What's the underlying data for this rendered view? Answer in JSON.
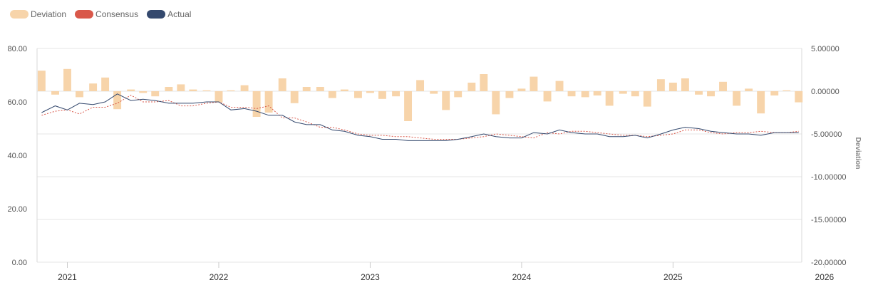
{
  "legend": [
    {
      "name": "Deviation",
      "color": "#F7D4AA"
    },
    {
      "name": "Consensus",
      "color": "#D9584A"
    },
    {
      "name": "Actual",
      "color": "#34496E"
    }
  ],
  "chart_data": {
    "type": "bar+line",
    "left_axis": {
      "min": 0,
      "max": 80,
      "ticks": [
        "0.00",
        "20.00",
        "40.00",
        "60.00",
        "80.00"
      ]
    },
    "right_axis": {
      "title": "Deviation",
      "min": -20,
      "max": 5,
      "ticks": [
        "-20.00000",
        "-15.00000",
        "-10.00000",
        "-5.00000",
        "0.00000",
        "5.00000"
      ]
    },
    "x_axis": {
      "ticks": [
        "2021",
        "2022",
        "2023",
        "2024",
        "2025",
        "2026"
      ],
      "start": 2020.8,
      "end": 2025.85
    },
    "grid": true,
    "legend_position": "top-left",
    "x": [
      2020.83,
      2020.92,
      2021.0,
      2021.08,
      2021.17,
      2021.25,
      2021.33,
      2021.42,
      2021.5,
      2021.58,
      2021.67,
      2021.75,
      2021.83,
      2021.92,
      2022.0,
      2022.08,
      2022.17,
      2022.25,
      2022.33,
      2022.42,
      2022.5,
      2022.58,
      2022.67,
      2022.75,
      2022.83,
      2022.92,
      2023.0,
      2023.08,
      2023.17,
      2023.25,
      2023.33,
      2023.42,
      2023.5,
      2023.58,
      2023.67,
      2023.75,
      2023.83,
      2023.92,
      2024.0,
      2024.08,
      2024.17,
      2024.25,
      2024.33,
      2024.42,
      2024.5,
      2024.58,
      2024.67,
      2024.75,
      2024.83,
      2024.92,
      2025.0,
      2025.08,
      2025.17,
      2025.25,
      2025.33,
      2025.42,
      2025.5,
      2025.58,
      2025.67,
      2025.75,
      2025.83
    ],
    "series": [
      {
        "name": "Deviation",
        "type": "bar",
        "axis": "right",
        "values": [
          2.4,
          -0.4,
          2.6,
          -0.7,
          0.9,
          1.6,
          -2.1,
          0.2,
          -0.2,
          -0.6,
          0.5,
          0.8,
          0.2,
          0.1,
          -1.3,
          0.1,
          0.7,
          -3.0,
          -2.5,
          1.5,
          -1.4,
          0.5,
          0.5,
          -0.8,
          0.2,
          -0.8,
          -0.2,
          -0.9,
          -0.6,
          -3.5,
          1.3,
          -0.3,
          -2.2,
          -0.7,
          1.0,
          2.0,
          -2.7,
          -0.8,
          0.3,
          1.7,
          -1.2,
          1.2,
          -0.6,
          -0.7,
          -0.5,
          -1.7,
          -0.3,
          -0.6,
          -1.8,
          1.4,
          1.0,
          1.5,
          -0.4,
          -0.6,
          1.1,
          -1.7,
          0.3,
          -2.6,
          -0.5,
          0.1,
          -1.3
        ]
      },
      {
        "name": "Consensus",
        "type": "line",
        "axis": "left",
        "values": [
          55.0,
          56.5,
          57.0,
          55.5,
          58.0,
          58.0,
          59.5,
          62.5,
          60.0,
          60.0,
          60.5,
          58.5,
          58.5,
          59.5,
          60.0,
          58.0,
          58.0,
          57.5,
          58.5,
          54.0,
          54.0,
          52.5,
          50.5,
          50.5,
          49.5,
          48.0,
          47.5,
          47.5,
          47.0,
          47.0,
          46.5,
          46.0,
          46.0,
          46.0,
          46.5,
          47.0,
          48.0,
          47.5,
          47.0,
          46.5,
          48.5,
          48.0,
          49.0,
          49.0,
          48.5,
          48.0,
          47.5,
          47.5,
          47.0,
          47.5,
          48.0,
          49.5,
          49.5,
          48.5,
          48.0,
          48.5,
          48.5,
          49.0,
          48.5,
          48.5,
          49.0
        ]
      },
      {
        "name": "Actual",
        "type": "line",
        "axis": "left",
        "values": [
          56.0,
          58.5,
          57.0,
          59.5,
          59.0,
          60.0,
          63.0,
          60.5,
          61.0,
          60.5,
          59.5,
          59.5,
          59.5,
          60.0,
          60.0,
          57.0,
          57.5,
          56.5,
          55.0,
          55.0,
          52.5,
          51.5,
          51.5,
          49.5,
          49.0,
          47.5,
          47.0,
          46.0,
          46.0,
          45.5,
          45.5,
          45.5,
          45.5,
          46.0,
          47.0,
          48.0,
          47.0,
          46.5,
          46.5,
          48.5,
          48.0,
          49.5,
          48.5,
          48.0,
          48.0,
          47.0,
          47.0,
          47.5,
          46.5,
          48.0,
          49.5,
          50.5,
          50.0,
          49.0,
          48.5,
          48.0,
          48.0,
          47.5,
          48.5,
          48.5,
          48.5
        ]
      }
    ]
  }
}
